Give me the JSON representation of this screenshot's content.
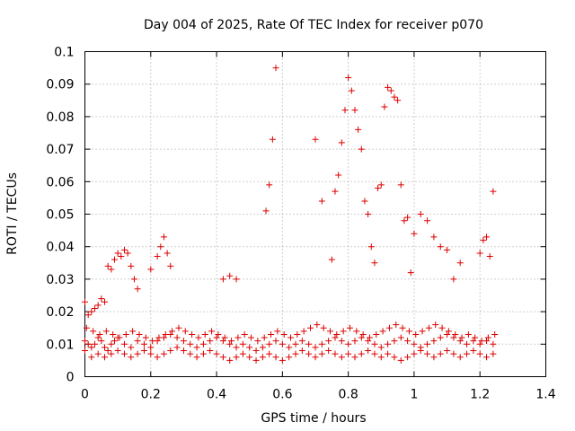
{
  "chart_data": {
    "type": "scatter",
    "title": "Day 004 of 2025, Rate Of TEC Index for receiver p070",
    "xlabel": "GPS time / hours",
    "ylabel": "ROTI / TECUs",
    "xlim": [
      0,
      1.4
    ],
    "ylim": [
      0,
      0.1
    ],
    "x_ticks": [
      "0",
      "0.2",
      "0.4",
      "0.6",
      "0.8",
      "1",
      "1.2",
      "1.4"
    ],
    "y_ticks": [
      "0",
      "0.01",
      "0.02",
      "0.03",
      "0.04",
      "0.05",
      "0.06",
      "0.07",
      "0.08",
      "0.09",
      "0.1"
    ],
    "grid": true,
    "marker": "+",
    "color": "#dd0000",
    "series": [
      {
        "x": [
          0.0,
          0.01,
          0.02,
          0.03,
          0.04,
          0.05,
          0.06,
          0.07,
          0.08,
          0.09,
          0.1,
          0.12,
          0.14,
          0.16,
          0.18,
          0.2,
          0.22,
          0.24,
          0.26,
          0.28,
          0.3,
          0.32,
          0.34,
          0.36,
          0.38,
          0.4,
          0.42,
          0.44,
          0.46,
          0.48,
          0.5,
          0.52,
          0.54,
          0.56,
          0.58,
          0.6,
          0.62,
          0.64,
          0.66,
          0.68,
          0.7,
          0.72,
          0.74,
          0.76,
          0.78,
          0.8,
          0.82,
          0.84,
          0.86,
          0.88,
          0.9,
          0.92,
          0.94,
          0.96,
          0.98,
          1.0,
          1.02,
          1.04,
          1.06,
          1.08,
          1.1,
          1.12,
          1.14,
          1.16,
          1.18,
          1.2,
          1.22,
          1.24,
          0.0,
          0.02,
          0.04,
          0.06,
          0.08,
          0.1,
          0.12,
          0.14,
          0.16,
          0.18,
          0.2,
          0.22,
          0.24,
          0.26,
          0.28,
          0.3,
          0.32,
          0.34,
          0.36,
          0.38,
          0.4,
          0.42,
          0.44,
          0.46,
          0.48,
          0.5,
          0.52,
          0.54,
          0.56,
          0.58,
          0.6,
          0.62,
          0.64,
          0.66,
          0.68,
          0.7,
          0.72,
          0.74,
          0.76,
          0.78,
          0.8,
          0.82,
          0.84,
          0.86,
          0.88,
          0.9,
          0.92,
          0.94,
          0.96,
          0.98,
          1.0,
          1.02,
          1.04,
          1.06,
          1.08,
          1.1,
          1.12,
          1.14,
          1.16,
          1.18,
          1.2,
          1.22,
          1.24,
          0.005,
          0.025,
          0.045,
          0.065,
          0.085,
          0.105,
          0.125,
          0.145,
          0.165,
          0.185,
          0.205,
          0.225,
          0.245,
          0.265,
          0.285,
          0.305,
          0.325,
          0.345,
          0.365,
          0.385,
          0.405,
          0.425,
          0.445,
          0.465,
          0.485,
          0.505,
          0.525,
          0.545,
          0.565,
          0.585,
          0.605,
          0.625,
          0.645,
          0.665,
          0.685,
          0.705,
          0.725,
          0.745,
          0.765,
          0.785,
          0.805,
          0.825,
          0.845,
          0.865,
          0.885,
          0.905,
          0.925,
          0.945,
          0.965,
          0.985,
          1.005,
          1.025,
          1.045,
          1.065,
          1.085,
          1.105,
          1.125,
          1.145,
          1.165,
          1.185,
          1.205,
          1.225,
          1.245,
          0.0,
          0.01,
          0.02,
          0.03,
          0.04,
          0.05,
          0.06,
          0.07,
          0.08,
          0.09,
          0.1,
          0.11,
          0.12,
          0.13,
          0.14,
          0.15,
          0.16,
          0.2,
          0.22,
          0.23,
          0.24,
          0.25,
          0.26,
          0.42,
          0.44,
          0.46,
          0.55,
          0.56,
          0.57,
          0.58,
          0.7,
          0.72,
          0.75,
          0.76,
          0.77,
          0.78,
          0.79,
          0.8,
          0.81,
          0.82,
          0.83,
          0.84,
          0.85,
          0.86,
          0.87,
          0.88,
          0.89,
          0.9,
          0.91,
          0.92,
          0.93,
          0.94,
          0.95,
          0.96,
          0.97,
          0.98,
          0.99,
          1.0,
          1.02,
          1.04,
          1.06,
          1.08,
          1.1,
          1.12,
          1.14,
          1.2,
          1.21,
          1.22,
          1.23,
          1.24
        ],
        "y": [
          0.011,
          0.01,
          0.009,
          0.01,
          0.012,
          0.011,
          0.009,
          0.008,
          0.01,
          0.011,
          0.012,
          0.01,
          0.009,
          0.011,
          0.01,
          0.009,
          0.011,
          0.012,
          0.013,
          0.012,
          0.011,
          0.01,
          0.009,
          0.01,
          0.011,
          0.012,
          0.011,
          0.01,
          0.009,
          0.01,
          0.009,
          0.008,
          0.009,
          0.01,
          0.011,
          0.01,
          0.009,
          0.01,
          0.011,
          0.01,
          0.009,
          0.01,
          0.011,
          0.012,
          0.011,
          0.01,
          0.011,
          0.012,
          0.011,
          0.01,
          0.009,
          0.01,
          0.011,
          0.012,
          0.011,
          0.01,
          0.009,
          0.01,
          0.011,
          0.012,
          0.013,
          0.012,
          0.011,
          0.01,
          0.011,
          0.01,
          0.011,
          0.01,
          0.008,
          0.006,
          0.007,
          0.006,
          0.007,
          0.008,
          0.007,
          0.006,
          0.007,
          0.008,
          0.007,
          0.006,
          0.007,
          0.008,
          0.009,
          0.008,
          0.007,
          0.006,
          0.007,
          0.008,
          0.007,
          0.006,
          0.005,
          0.006,
          0.007,
          0.006,
          0.005,
          0.006,
          0.007,
          0.006,
          0.005,
          0.006,
          0.007,
          0.008,
          0.007,
          0.006,
          0.007,
          0.008,
          0.007,
          0.006,
          0.007,
          0.006,
          0.007,
          0.008,
          0.007,
          0.006,
          0.007,
          0.006,
          0.005,
          0.006,
          0.007,
          0.008,
          0.007,
          0.006,
          0.007,
          0.008,
          0.007,
          0.006,
          0.007,
          0.008,
          0.007,
          0.006,
          0.007,
          0.015,
          0.014,
          0.013,
          0.014,
          0.013,
          0.012,
          0.013,
          0.014,
          0.013,
          0.012,
          0.011,
          0.012,
          0.013,
          0.014,
          0.015,
          0.014,
          0.013,
          0.012,
          0.013,
          0.014,
          0.013,
          0.012,
          0.011,
          0.012,
          0.013,
          0.012,
          0.011,
          0.012,
          0.013,
          0.014,
          0.013,
          0.012,
          0.013,
          0.014,
          0.015,
          0.016,
          0.015,
          0.014,
          0.013,
          0.014,
          0.015,
          0.014,
          0.013,
          0.012,
          0.013,
          0.014,
          0.015,
          0.016,
          0.015,
          0.014,
          0.013,
          0.014,
          0.015,
          0.016,
          0.015,
          0.014,
          0.013,
          0.012,
          0.013,
          0.012,
          0.011,
          0.012,
          0.013,
          0.023,
          0.019,
          0.02,
          0.021,
          0.022,
          0.024,
          0.023,
          0.034,
          0.033,
          0.036,
          0.038,
          0.037,
          0.039,
          0.038,
          0.034,
          0.03,
          0.027,
          0.033,
          0.037,
          0.04,
          0.043,
          0.038,
          0.034,
          0.03,
          0.031,
          0.03,
          0.051,
          0.059,
          0.073,
          0.095,
          0.073,
          0.054,
          0.036,
          0.057,
          0.062,
          0.072,
          0.082,
          0.092,
          0.088,
          0.082,
          0.076,
          0.07,
          0.054,
          0.05,
          0.04,
          0.035,
          0.058,
          0.059,
          0.083,
          0.089,
          0.088,
          0.086,
          0.085,
          0.059,
          0.048,
          0.049,
          0.032,
          0.044,
          0.05,
          0.048,
          0.043,
          0.04,
          0.039,
          0.03,
          0.035,
          0.038,
          0.042,
          0.043,
          0.037,
          0.057
        ]
      }
    ]
  }
}
